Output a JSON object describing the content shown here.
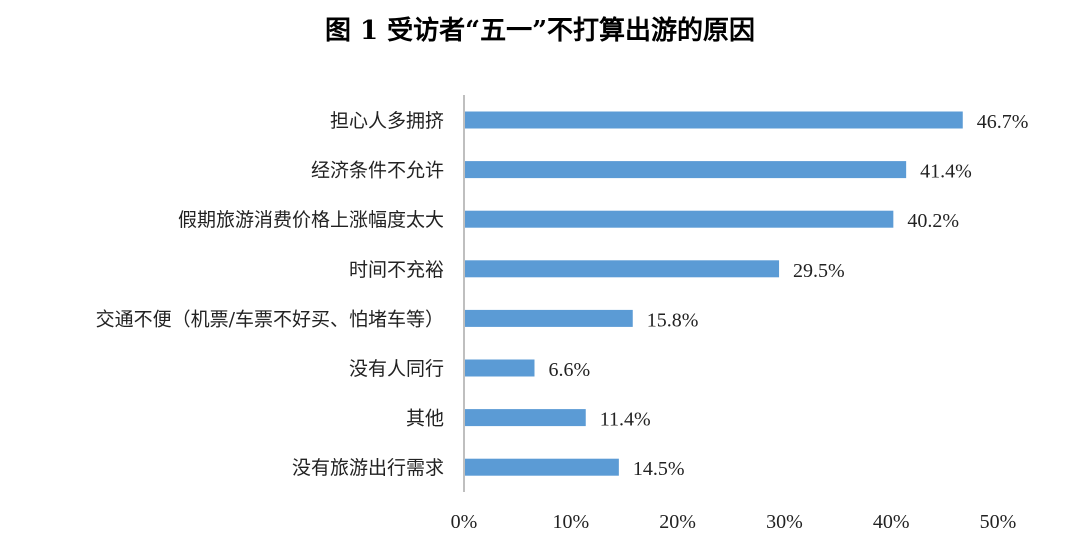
{
  "chart_data": {
    "type": "bar",
    "orientation": "horizontal",
    "title": "图 1 受访者“五一”不打算出游的原因",
    "categories": [
      "担心人多拥挤",
      "经济条件不允许",
      "假期旅游消费价格上涨幅度太大",
      "时间不充裕",
      "交通不便（机票/车票不好买、怕堵车等）",
      "没有人同行",
      "其他",
      "没有旅游出行需求"
    ],
    "values": [
      46.7,
      41.4,
      40.2,
      29.5,
      15.8,
      6.6,
      11.4,
      14.5
    ],
    "value_labels": [
      "46.7%",
      "41.4%",
      "40.2%",
      "29.5%",
      "15.8%",
      "6.6%",
      "11.4%",
      "14.5%"
    ],
    "xlim": [
      0,
      50
    ],
    "x_ticks": [
      0,
      10,
      20,
      30,
      40,
      50
    ],
    "x_tick_labels": [
      "0%",
      "10%",
      "20%",
      "30%",
      "40%",
      "50%"
    ],
    "xlabel": "",
    "ylabel": "",
    "grid": false,
    "legend": "none",
    "bar_color": "#5b9bd5",
    "axis_color": "#bfbfbf"
  }
}
